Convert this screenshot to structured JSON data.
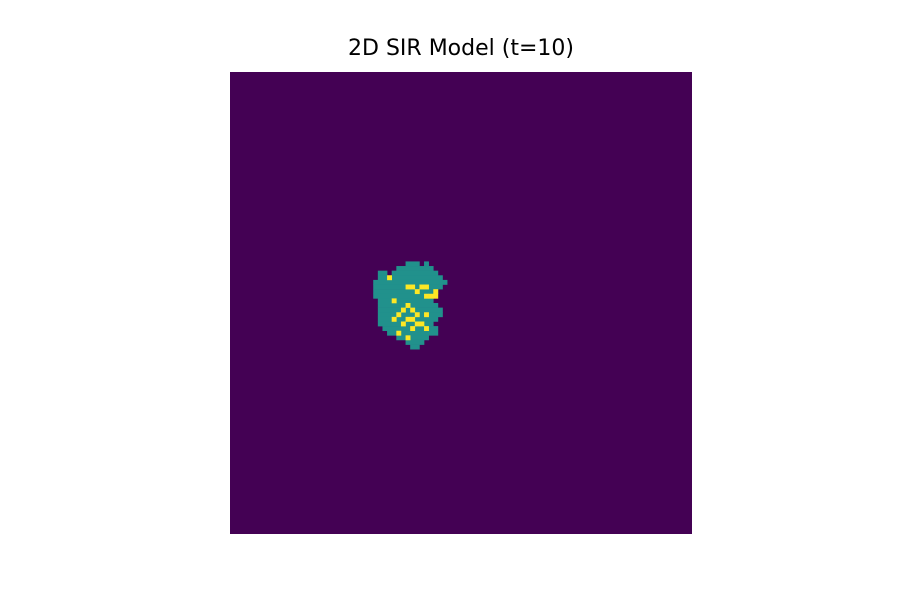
{
  "chart_data": {
    "type": "heatmap",
    "title": "2D SIR Model (t=10)",
    "xlabel": "",
    "ylabel": "",
    "axis": "off",
    "grid_size": [
      100,
      100
    ],
    "state_codes": {
      "susceptible": 0,
      "infected": 1,
      "recovered": 2
    },
    "colors": {
      "0": "#440154",
      "1": "#21918c",
      "2": "#fde725"
    },
    "background_state": 0,
    "infected_row_spans": [
      [
        41,
        [
          [
            38,
            41
          ],
          [
            42,
            43
          ]
        ]
      ],
      [
        42,
        [
          [
            36,
            44
          ]
        ]
      ],
      [
        43,
        [
          [
            32,
            34
          ],
          [
            35,
            45
          ]
        ]
      ],
      [
        44,
        [
          [
            32,
            46
          ]
        ]
      ],
      [
        45,
        [
          [
            31,
            47
          ]
        ]
      ],
      [
        46,
        [
          [
            31,
            46
          ]
        ]
      ],
      [
        47,
        [
          [
            31,
            45
          ]
        ]
      ],
      [
        48,
        [
          [
            31,
            44
          ]
        ]
      ],
      [
        49,
        [
          [
            32,
            44
          ]
        ]
      ],
      [
        50,
        [
          [
            32,
            45
          ]
        ]
      ],
      [
        51,
        [
          [
            32,
            46
          ]
        ]
      ],
      [
        52,
        [
          [
            32,
            46
          ]
        ]
      ],
      [
        53,
        [
          [
            32,
            45
          ]
        ]
      ],
      [
        54,
        [
          [
            32,
            44
          ]
        ]
      ],
      [
        55,
        [
          [
            33,
            45
          ]
        ]
      ],
      [
        56,
        [
          [
            34,
            45
          ]
        ]
      ],
      [
        57,
        [
          [
            36,
            43
          ]
        ]
      ],
      [
        58,
        [
          [
            38,
            42
          ]
        ]
      ],
      [
        59,
        [
          [
            39,
            41
          ]
        ]
      ]
    ],
    "recovered_cells": [
      [
        34,
        44
      ],
      [
        38,
        46
      ],
      [
        39,
        46
      ],
      [
        41,
        46
      ],
      [
        42,
        46
      ],
      [
        40,
        47
      ],
      [
        44,
        47
      ],
      [
        44,
        48
      ],
      [
        42,
        48
      ],
      [
        43,
        48
      ],
      [
        35,
        49
      ],
      [
        38,
        50
      ],
      [
        37,
        51
      ],
      [
        39,
        51
      ],
      [
        36,
        52
      ],
      [
        40,
        52
      ],
      [
        42,
        52
      ],
      [
        35,
        53
      ],
      [
        38,
        53
      ],
      [
        39,
        53
      ],
      [
        37,
        54
      ],
      [
        40,
        54
      ],
      [
        41,
        54
      ],
      [
        39,
        55
      ],
      [
        42,
        55
      ],
      [
        36,
        56
      ],
      [
        38,
        57
      ]
    ]
  }
}
